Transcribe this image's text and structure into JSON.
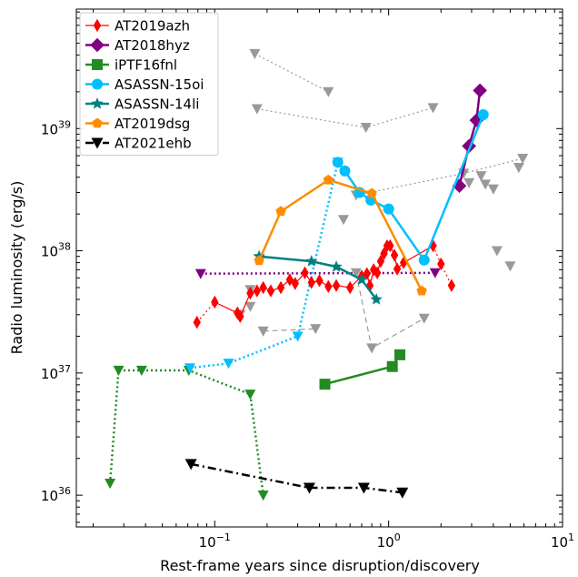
{
  "chart_data": {
    "type": "scatter",
    "xlabel": "Rest-frame years since disruption/discovery",
    "ylabel": "Radio luminosity (erg/s)",
    "xscale": "log",
    "yscale": "log",
    "xlim": [
      0.016,
      10
    ],
    "ylim": [
      5.5e+35,
      9.5e+39
    ],
    "x_ticks": [
      {
        "value": 0.1,
        "base": "10",
        "exp": "−1"
      },
      {
        "value": 1,
        "base": "10",
        "exp": "0"
      },
      {
        "value": 10,
        "base": "10",
        "exp": "1"
      }
    ],
    "y_ticks": [
      {
        "value": 1e+36,
        "base": "10",
        "exp": "36"
      },
      {
        "value": 1e+37,
        "base": "10",
        "exp": "37"
      },
      {
        "value": 1e+38,
        "base": "10",
        "exp": "38"
      },
      {
        "value": 1e+39,
        "base": "10",
        "exp": "39"
      }
    ],
    "legend_position": "upper-left",
    "series": [
      {
        "name": "AT2019azh",
        "color": "#ff0000",
        "marker": "thin-diamond",
        "points": [
          [
            0.079,
            2.6e+37
          ],
          [
            0.1,
            3.8e+37
          ],
          [
            0.135,
            3.1e+37
          ],
          [
            0.14,
            2.9e+37
          ],
          [
            0.16,
            4.5e+37
          ],
          [
            0.175,
            4.7e+37
          ],
          [
            0.19,
            5e+37
          ],
          [
            0.21,
            4.7e+37
          ],
          [
            0.24,
            5e+37
          ],
          [
            0.27,
            5.8e+37
          ],
          [
            0.29,
            5.4e+37
          ],
          [
            0.33,
            6.6e+37
          ],
          [
            0.36,
            5.5e+37
          ],
          [
            0.4,
            5.7e+37
          ],
          [
            0.45,
            5.1e+37
          ],
          [
            0.5,
            5.2e+37
          ],
          [
            0.6,
            5e+37
          ],
          [
            0.7,
            6.2e+37
          ],
          [
            0.75,
            6.5e+37
          ],
          [
            0.78,
            5.2e+37
          ],
          [
            0.82,
            7e+37
          ],
          [
            0.86,
            6.6e+37
          ],
          [
            0.9,
            8.2e+37
          ],
          [
            0.94,
            9.5e+37
          ],
          [
            0.98,
            1.1e+38
          ],
          [
            1.02,
            1.1e+38
          ],
          [
            1.08,
            9.2e+37
          ],
          [
            1.12,
            7.1e+37
          ],
          [
            1.22,
            8e+37
          ],
          [
            1.8,
            1.1e+38
          ],
          [
            2.0,
            7.8e+37
          ],
          [
            2.3,
            5.2e+37
          ]
        ],
        "segments": [
          {
            "style": "dotted",
            "from": 0,
            "to": 1
          },
          {
            "style": "solid",
            "from": 1,
            "to": 29
          },
          {
            "style": "dotted",
            "from": 29,
            "to": 31
          }
        ]
      },
      {
        "name": "AT2018hyz",
        "color": "#800080",
        "marker": "diamond",
        "points": [
          [
            2.55,
            3.4e+38
          ],
          [
            2.9,
            7.2e+38
          ],
          [
            3.2,
            1.17e+39
          ],
          [
            3.35,
            2.05e+39
          ]
        ],
        "segments": [
          {
            "style": "solid",
            "from": 0,
            "to": 3
          }
        ]
      },
      {
        "name": "iPTF16fnl",
        "color": "#228b22",
        "marker": "square",
        "points": [
          [
            0.43,
            8.1e+36
          ],
          [
            1.05,
            1.13e+37
          ],
          [
            1.16,
            1.41e+37
          ]
        ],
        "segments": [
          {
            "style": "solid",
            "from": 0,
            "to": 2
          }
        ]
      },
      {
        "name": "ASASSN-15oi",
        "color": "#00bfff",
        "marker": "circle",
        "points": [
          [
            0.51,
            5.3e+38
          ],
          [
            0.56,
            4.5e+38
          ],
          [
            0.68,
            3e+38
          ],
          [
            0.79,
            2.6e+38
          ],
          [
            1.0,
            2.2e+38
          ],
          [
            1.6,
            8.4e+37
          ],
          [
            3.5,
            1.3e+39
          ]
        ],
        "segments": [
          {
            "style": "solid",
            "from": 0,
            "to": 6
          }
        ]
      },
      {
        "name": "ASASSN-14li",
        "color": "#008080",
        "marker": "star",
        "points": [
          [
            0.18,
            9e+37
          ],
          [
            0.36,
            8.2e+37
          ],
          [
            0.5,
            7.4e+37
          ],
          [
            0.7,
            5.8e+37
          ],
          [
            0.85,
            4e+37
          ]
        ],
        "segments": [
          {
            "style": "solid",
            "from": 0,
            "to": 4
          }
        ]
      },
      {
        "name": "AT2019dsg",
        "color": "#ff8c00",
        "marker": "pentagon",
        "points": [
          [
            0.18,
            8.3e+37
          ],
          [
            0.24,
            2.1e+38
          ],
          [
            0.45,
            3.8e+38
          ],
          [
            0.8,
            2.95e+38
          ],
          [
            1.55,
            4.7e+37
          ]
        ],
        "segments": [
          {
            "style": "solid",
            "from": 0,
            "to": 4
          }
        ]
      },
      {
        "name": "AT2021ehb",
        "color": "#000000",
        "marker": "triangle-down",
        "points": [
          [
            0.073,
            1.8e+36
          ],
          [
            0.35,
            1.15e+36
          ],
          [
            0.72,
            1.15e+36
          ],
          [
            1.2,
            1.05e+36
          ]
        ],
        "segments": [
          {
            "style": "dashdot",
            "from": 0,
            "to": 3
          }
        ]
      }
    ],
    "upper_limits": [
      {
        "color": "#800080",
        "points": [
          [
            0.083,
            6.5e+37
          ],
          [
            1.85,
            6.6e+37
          ]
        ],
        "line": "dotted"
      },
      {
        "color": "#228b22",
        "points": [
          [
            0.025,
            1.25e+36
          ],
          [
            0.028,
            1.05e+37
          ],
          [
            0.038,
            1.05e+37
          ],
          [
            0.071,
            1.05e+37
          ],
          [
            0.16,
            6.7e+36
          ],
          [
            0.19,
            1e+36
          ]
        ],
        "line": "dotted"
      },
      {
        "color": "#00bfff",
        "points": [
          [
            0.072,
            1.1e+37
          ],
          [
            0.12,
            1.2e+37
          ],
          [
            0.3,
            2e+37
          ],
          [
            0.51,
            5.3e+38
          ]
        ],
        "line": "dotted"
      },
      {
        "color": "#999999",
        "points": [
          [
            0.17,
            4.1e+39
          ],
          [
            0.45,
            2e+39
          ]
        ],
        "line": "dotted"
      },
      {
        "color": "#999999",
        "points": [
          [
            0.175,
            1.45e+39
          ],
          [
            0.74,
            1.02e+39
          ],
          [
            1.8,
            1.48e+39
          ]
        ],
        "line": "dotted"
      },
      {
        "color": "#999999",
        "points": [
          [
            0.65,
            2.85e+38
          ],
          [
            2.7,
            4.3e+38
          ],
          [
            5.9,
            5.7e+38
          ]
        ],
        "line": "dotted"
      },
      {
        "color": "#999999",
        "points": [
          [
            0.19,
            2.2e+37
          ],
          [
            0.38,
            2.3e+37
          ]
        ],
        "line": "dashed"
      },
      {
        "color": "#999999",
        "points": [
          [
            0.65,
            6.6e+37
          ],
          [
            0.8,
            1.6e+37
          ],
          [
            1.6,
            2.8e+37
          ]
        ],
        "line": "dashed"
      },
      {
        "color": "#999999",
        "points": [
          [
            0.55,
            1.8e+38
          ],
          [
            0.16,
            3.5e+37
          ],
          [
            0.14,
            3e+37
          ],
          [
            0.16,
            4.8e+37
          ],
          [
            2.9,
            3.6e+38
          ],
          [
            3.4,
            4.1e+38
          ],
          [
            3.6,
            3.5e+38
          ],
          [
            4.0,
            3.2e+38
          ],
          [
            4.2,
            1e+38
          ],
          [
            5.0,
            7.5e+37
          ],
          [
            5.6,
            4.8e+38
          ]
        ],
        "line": "none"
      }
    ]
  }
}
